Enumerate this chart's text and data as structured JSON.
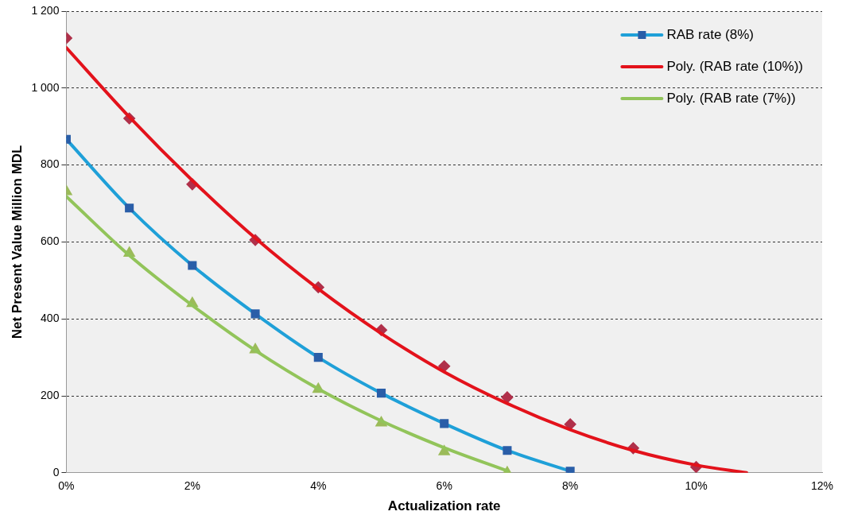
{
  "chart_data": {
    "type": "line",
    "xlabel": "Actualization rate",
    "ylabel": "Net Present Value Million MDL",
    "xlim": [
      0,
      12
    ],
    "xticks": [
      {
        "value": 0,
        "label": "0%"
      },
      {
        "value": 2,
        "label": "2%"
      },
      {
        "value": 4,
        "label": "4%"
      },
      {
        "value": 6,
        "label": "6%"
      },
      {
        "value": 8,
        "label": "8%"
      },
      {
        "value": 10,
        "label": "10%"
      },
      {
        "value": 12,
        "label": "12%"
      }
    ],
    "ylim": [
      0,
      1200
    ],
    "yticks": [
      0,
      200,
      400,
      600,
      800,
      {
        "value": 1000,
        "label": "1 000"
      },
      {
        "value": 1200,
        "label": "1 200"
      }
    ],
    "grid": "y",
    "legend": "top right",
    "series": [
      {
        "name": "RAB rate (8%)",
        "type": "line",
        "marker": "square",
        "color": "#1fa0d8",
        "x": [
          0,
          1,
          2,
          3,
          4,
          5,
          6,
          7,
          8
        ],
        "values": [
          867,
          688,
          539,
          413,
          300,
          207,
          128,
          58,
          4
        ]
      },
      {
        "type": "scatter",
        "marker": "diamond",
        "color": "#b0304a",
        "x": [
          0,
          1,
          2,
          3,
          4,
          5,
          6,
          7,
          8,
          9,
          10
        ],
        "values": [
          1130,
          921,
          750,
          605,
          482,
          371,
          277,
          196,
          126,
          64,
          15
        ]
      },
      {
        "name": "Poly. (RAB rate (10%))",
        "type": "line",
        "marker": "none",
        "color": "#e3121b",
        "x": [
          0,
          1,
          2,
          3,
          4,
          5,
          6,
          7,
          8,
          9,
          10,
          10.8
        ],
        "values": [
          1105,
          925,
          760,
          610,
          478,
          362,
          262,
          180,
          112,
          58,
          20,
          0
        ]
      },
      {
        "type": "scatter",
        "marker": "triangle",
        "color": "#9bbb59",
        "x": [
          0,
          1,
          2,
          3,
          4,
          5,
          6,
          7
        ],
        "values": [
          731,
          571,
          440,
          320,
          217,
          130,
          55,
          0
        ]
      },
      {
        "name": "Poly. (RAB rate (7%))",
        "type": "line",
        "marker": "none",
        "color": "#92c45a",
        "x": [
          0,
          1,
          2,
          3,
          4,
          5,
          6,
          7
        ],
        "values": [
          718,
          565,
          435,
          318,
          218,
          135,
          65,
          5
        ]
      }
    ]
  }
}
